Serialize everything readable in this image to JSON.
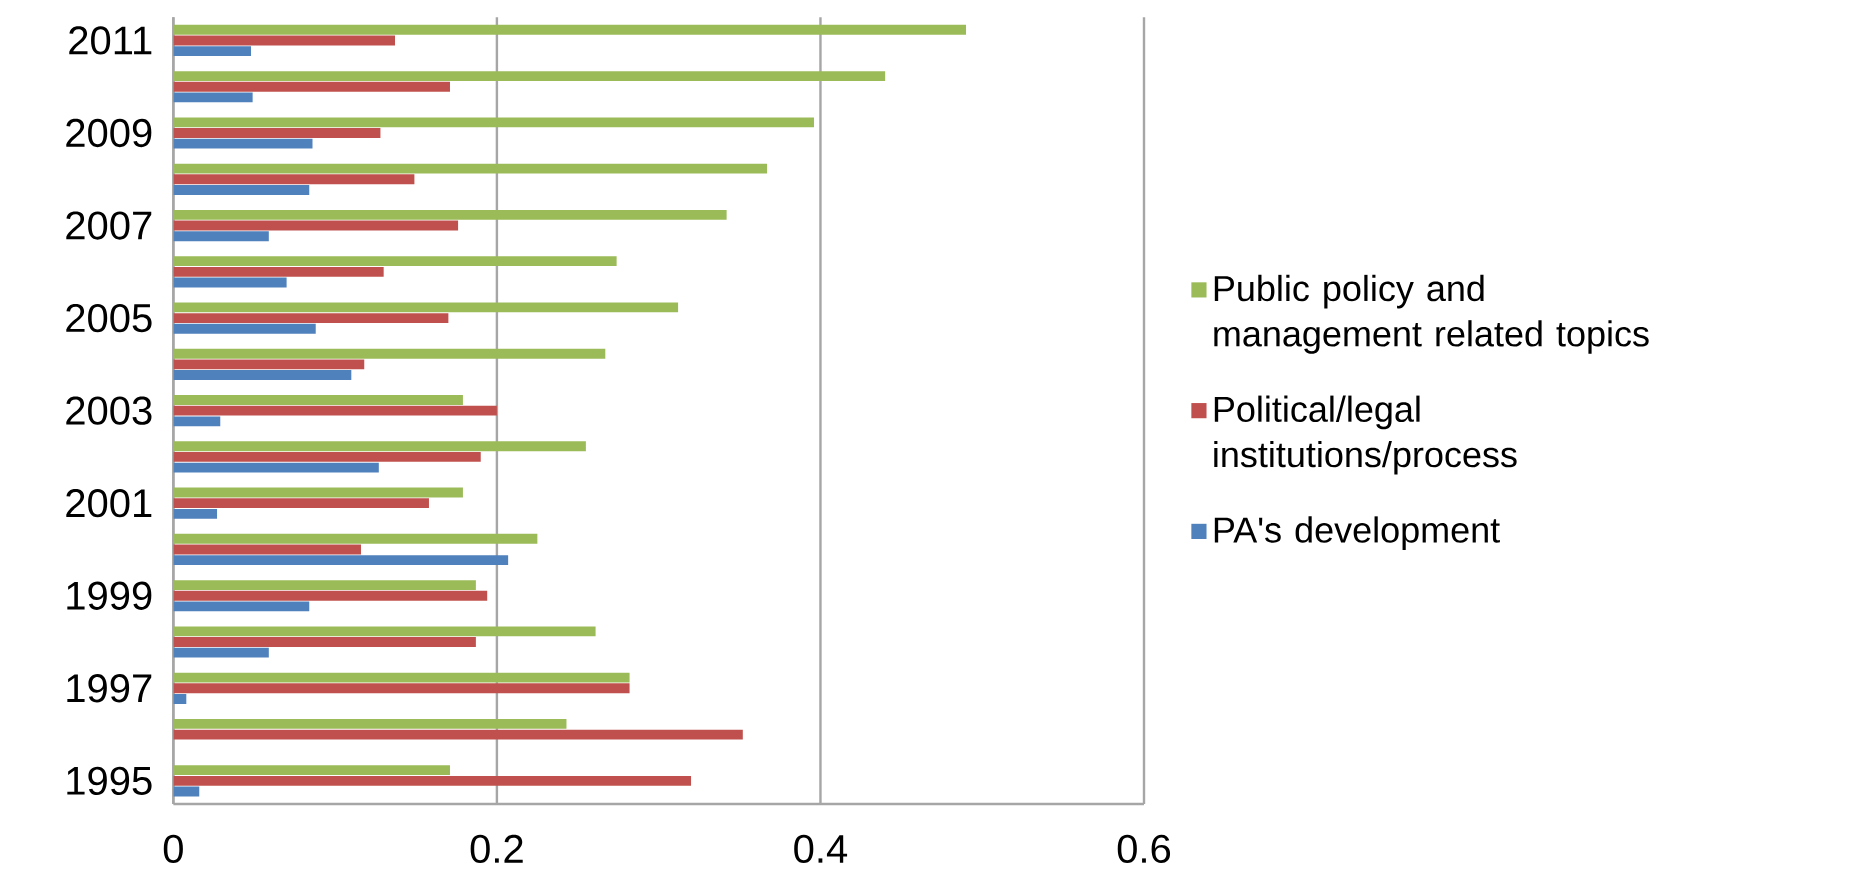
{
  "chart_data": {
    "type": "bar",
    "orientation": "horizontal",
    "categories": [
      "2011",
      null,
      "2009",
      null,
      "2007",
      null,
      "2005",
      null,
      "2003",
      null,
      "2001",
      null,
      "1999",
      null,
      "1997",
      null,
      "1995"
    ],
    "series": [
      {
        "name": "Public policy and management related topics",
        "color": "#9bbb59",
        "values": [
          0.49,
          0.44,
          0.396,
          0.367,
          0.342,
          0.274,
          0.312,
          0.267,
          0.179,
          0.255,
          0.179,
          0.225,
          0.187,
          0.261,
          0.282,
          0.243,
          0.171
        ]
      },
      {
        "name": "Political/legal institutions/process",
        "color": "#c0504d",
        "values": [
          0.137,
          0.171,
          0.128,
          0.149,
          0.176,
          0.13,
          0.17,
          0.118,
          0.2,
          0.19,
          0.158,
          0.116,
          0.194,
          0.187,
          0.282,
          0.352,
          0.32
        ]
      },
      {
        "name": "PA's development",
        "color": "#4f81bd",
        "values": [
          0.048,
          0.049,
          0.086,
          0.084,
          0.059,
          0.07,
          0.088,
          0.11,
          0.029,
          0.127,
          0.027,
          0.207,
          0.084,
          0.059,
          0.008,
          0,
          0.016
        ]
      }
    ],
    "xlim": [
      0,
      0.6
    ],
    "xticks": [
      0,
      0.2,
      0.4,
      0.6
    ],
    "grid": "x",
    "legend": "right"
  }
}
